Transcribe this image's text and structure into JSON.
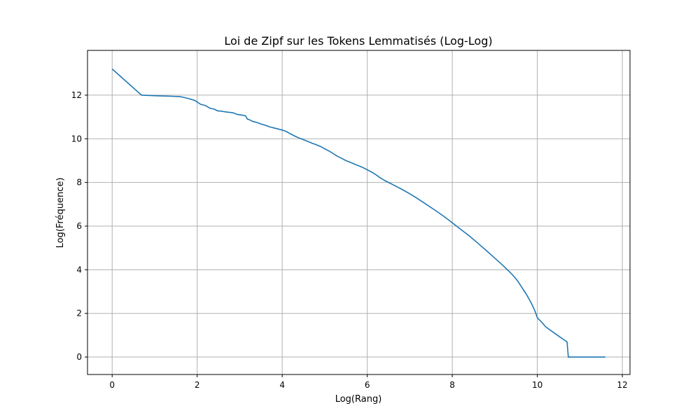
{
  "chart_data": {
    "type": "line",
    "title": "Loi de Zipf sur les Tokens Lemmatisés (Log-Log)",
    "xlabel": "Log(Rang)",
    "ylabel": "Log(Fréquence)",
    "xlim": [
      -0.58,
      12.18
    ],
    "ylim": [
      -0.8,
      14.05
    ],
    "xticks": [
      0,
      2,
      4,
      6,
      8,
      10,
      12
    ],
    "yticks": [
      0,
      2,
      4,
      6,
      8,
      10,
      12
    ],
    "grid": true,
    "line_color": "#1f77b4",
    "series": [
      {
        "x": [
          0,
          0.69,
          1.1,
          1.39,
          1.61,
          1.79,
          1.95,
          2.08,
          2.2,
          2.3,
          2.4,
          2.48,
          2.56,
          2.64,
          2.71,
          2.83,
          2.94,
          3.04,
          3.14,
          3.18,
          3.22,
          3.3,
          3.4,
          3.5,
          3.6,
          3.7,
          3.8,
          3.9,
          4.0,
          4.1,
          4.2,
          4.3,
          4.4,
          4.5,
          4.6,
          4.7,
          4.8,
          4.9,
          5.0,
          5.1,
          5.2,
          5.3,
          5.4,
          5.5,
          5.6,
          5.7,
          5.8,
          5.9,
          6.0,
          6.1,
          6.2,
          6.3,
          6.4,
          6.5,
          6.6,
          6.8,
          7.0,
          7.2,
          7.4,
          7.6,
          7.8,
          8.0,
          8.2,
          8.4,
          8.6,
          8.8,
          9.0,
          9.2,
          9.4,
          9.5,
          9.55,
          9.6,
          9.65,
          9.7,
          9.75,
          9.8,
          9.85,
          9.9,
          9.95,
          10.0,
          10.1,
          10.2,
          10.4,
          10.7,
          10.73,
          11.6
        ],
        "y": [
          13.2,
          12.0,
          11.97,
          11.95,
          11.93,
          11.85,
          11.75,
          11.58,
          11.52,
          11.4,
          11.36,
          11.28,
          11.27,
          11.24,
          11.22,
          11.2,
          11.12,
          11.09,
          11.05,
          10.9,
          10.88,
          10.8,
          10.75,
          10.68,
          10.62,
          10.55,
          10.5,
          10.45,
          10.4,
          10.33,
          10.22,
          10.12,
          10.03,
          9.96,
          9.88,
          9.8,
          9.73,
          9.65,
          9.54,
          9.44,
          9.32,
          9.2,
          9.1,
          9.0,
          8.92,
          8.84,
          8.76,
          8.68,
          8.58,
          8.48,
          8.36,
          8.22,
          8.1,
          8.0,
          7.9,
          7.7,
          7.48,
          7.24,
          6.98,
          6.72,
          6.45,
          6.15,
          5.85,
          5.55,
          5.22,
          4.88,
          4.53,
          4.18,
          3.8,
          3.58,
          3.45,
          3.3,
          3.15,
          3.0,
          2.85,
          2.68,
          2.5,
          2.3,
          2.08,
          1.8,
          1.6,
          1.38,
          1.1,
          0.69,
          0.0,
          0.0
        ]
      }
    ]
  }
}
